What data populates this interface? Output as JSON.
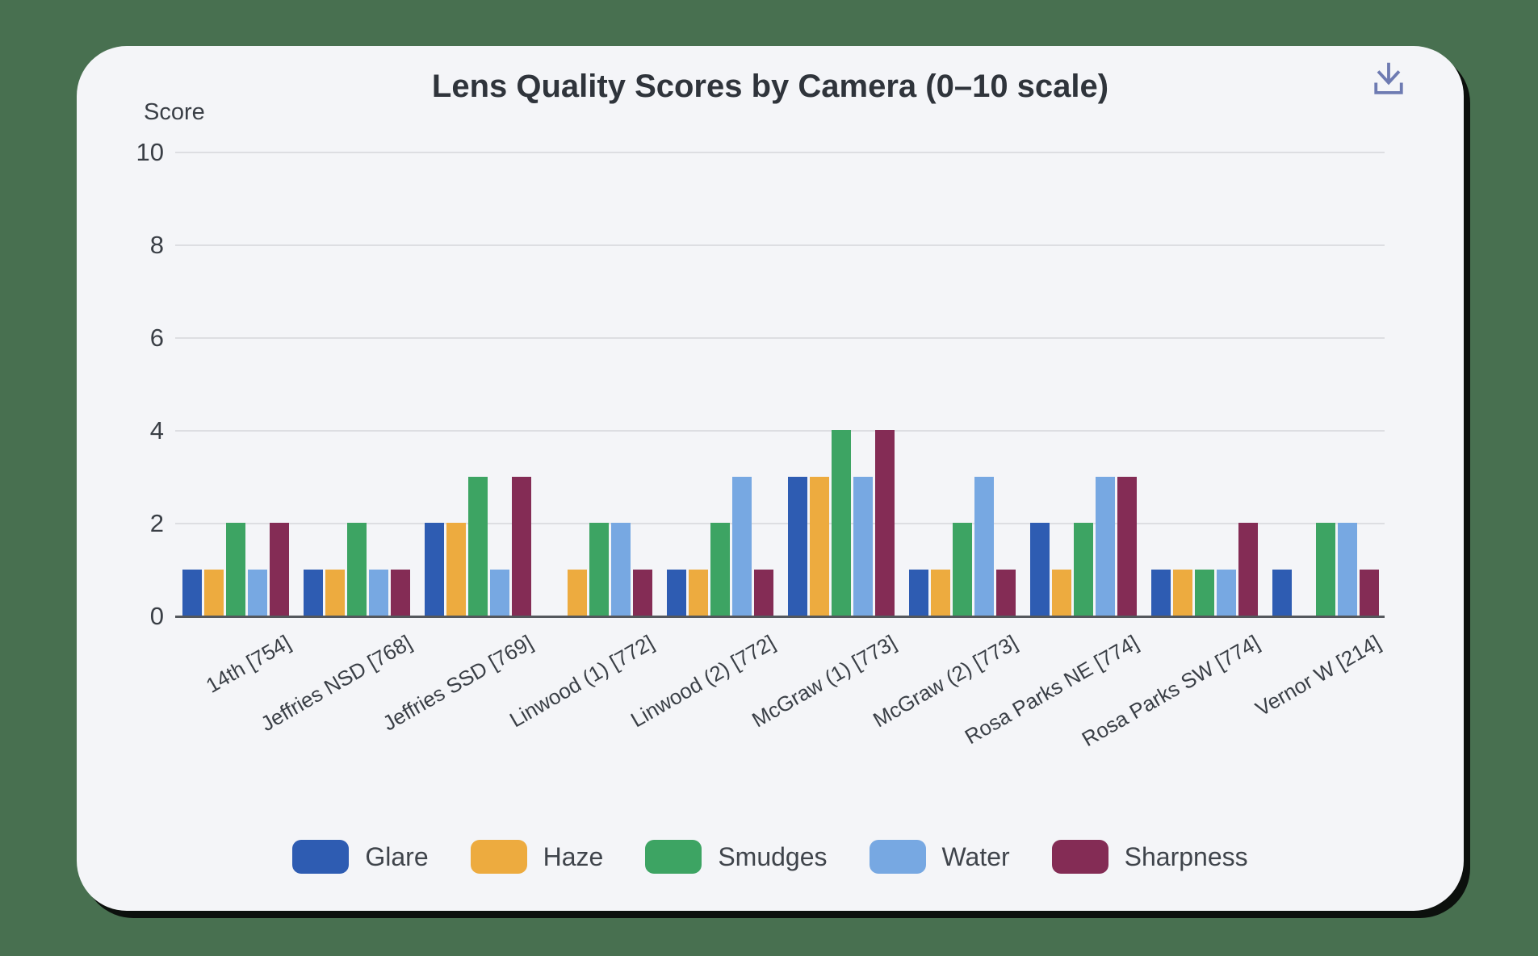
{
  "page": {
    "background_color": "#487050",
    "card_color": "#f4f5f8"
  },
  "header": {
    "download_icon_color": "#6e7bb2"
  },
  "chart_data": {
    "type": "bar",
    "title": "Lens Quality Scores by Camera (0–10 scale)",
    "ylabel": "Score",
    "xlabel": "",
    "ylim": [
      0,
      10
    ],
    "yticks": [
      0,
      2,
      4,
      6,
      8,
      10
    ],
    "grid": true,
    "legend_position": "bottom",
    "categories": [
      "14th [754]",
      "Jeffries NSD [768]",
      "Jeffries SSD [769]",
      "Linwood (1) [772]",
      "Linwood (2) [772]",
      "McGraw (1) [773]",
      "McGraw (2) [773]",
      "Rosa Parks NE [774]",
      "Rosa Parks SW [774]",
      "Vernor W [214]"
    ],
    "series": [
      {
        "name": "Glare",
        "color": "#2e5cb2",
        "values": [
          1,
          1,
          2,
          0,
          1,
          3,
          1,
          2,
          1,
          1
        ]
      },
      {
        "name": "Haze",
        "color": "#edab3f",
        "values": [
          1,
          1,
          2,
          1,
          1,
          3,
          1,
          1,
          1,
          0
        ]
      },
      {
        "name": "Smudges",
        "color": "#3da463",
        "values": [
          2,
          2,
          3,
          2,
          2,
          4,
          2,
          2,
          1,
          2
        ]
      },
      {
        "name": "Water",
        "color": "#77a8e2",
        "values": [
          1,
          1,
          1,
          2,
          3,
          3,
          3,
          3,
          1,
          2
        ]
      },
      {
        "name": "Sharpness",
        "color": "#842c55",
        "values": [
          2,
          1,
          3,
          1,
          1,
          4,
          1,
          3,
          2,
          1
        ]
      }
    ]
  }
}
